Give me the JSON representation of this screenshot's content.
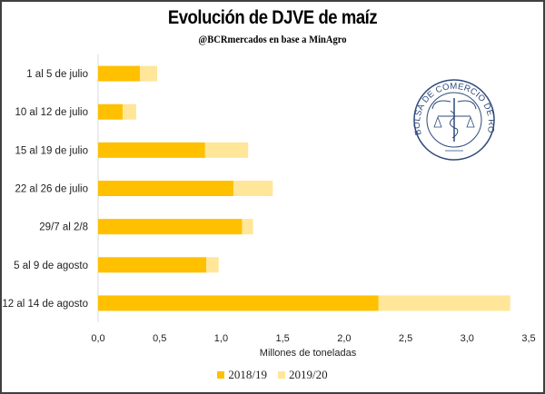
{
  "chart_data": {
    "type": "bar",
    "orientation": "horizontal",
    "stacked": true,
    "title": "Evolución de DJVE de maíz",
    "subtitle": "@BCRmercados en base a MinAgro",
    "xlabel": "Millones de toneladas",
    "ylabel": "",
    "xlim": [
      0,
      3.5
    ],
    "xticks": [
      "0,0",
      "0,5",
      "1,0",
      "1,5",
      "2,0",
      "2,5",
      "3,0",
      "3,5"
    ],
    "categories": [
      "1 al 5 de julio",
      "10 al 12 de julio",
      "15 al 19 de julio",
      "22 al 26 de julio",
      "29/7 al 2/8",
      "5 al 9 de agosto",
      "12 al 14 de agosto"
    ],
    "series": [
      {
        "name": "2018/19",
        "color": "#FFC000",
        "values": [
          0.34,
          0.2,
          0.87,
          1.1,
          1.17,
          0.88,
          2.28
        ]
      },
      {
        "name": "2019/20",
        "color": "#FFE699",
        "values": [
          0.14,
          0.11,
          0.35,
          0.32,
          0.09,
          0.1,
          1.07
        ]
      }
    ],
    "grid": false,
    "legend_position": "bottom"
  },
  "logo": {
    "text": "BOLSA DE COMERCIO DE ROSARIO"
  }
}
